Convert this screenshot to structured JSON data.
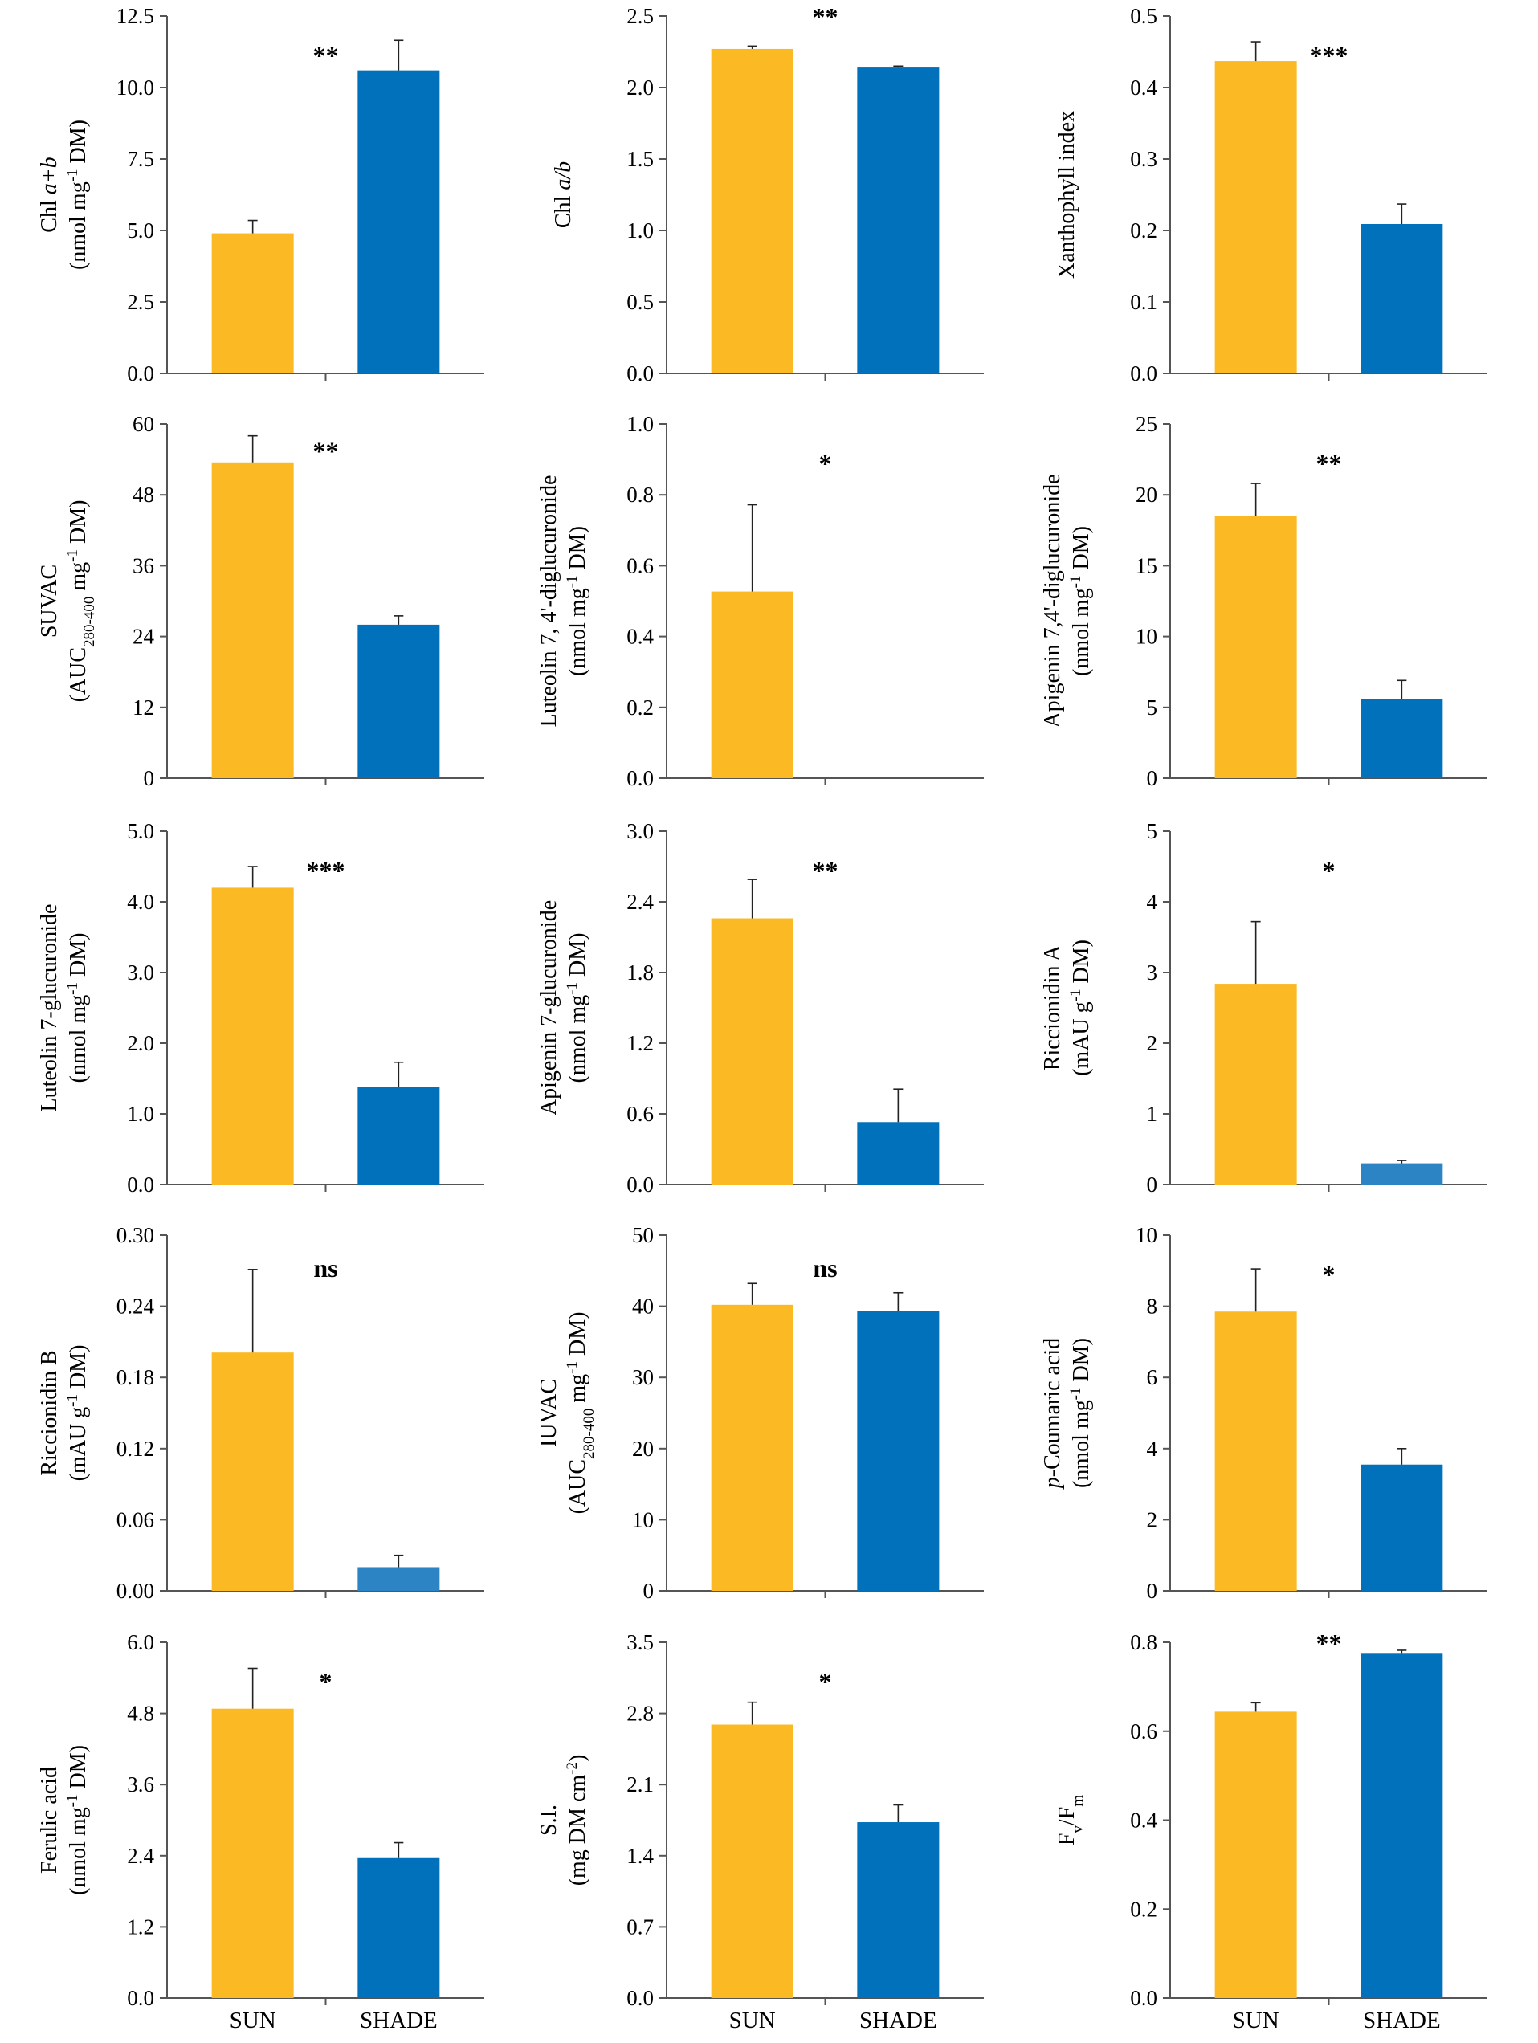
{
  "colors": {
    "sun": "#FBB924",
    "shade": "#0171BB",
    "shade_light": "#2D84C4",
    "axis": "#555555",
    "text": "#000000"
  },
  "x_categories": [
    "SUN",
    "SHADE"
  ],
  "chart_data": [
    {
      "type": "bar",
      "categories": [
        "SUN",
        "SHADE"
      ],
      "ylabel_lines": [
        [
          {
            "t": "Chl "
          },
          {
            "t": "a+b",
            "i": true
          }
        ],
        [
          {
            "t": "(nmol mg"
          },
          {
            "t": "-1",
            "sup": true
          },
          {
            "t": " DM)"
          }
        ]
      ],
      "yticks": [
        "0.0",
        "2.5",
        "5.0",
        "7.5",
        "10.0",
        "12.5"
      ],
      "ylim": [
        0,
        12.5
      ],
      "values": [
        4.9,
        10.6
      ],
      "errors": [
        0.45,
        1.05
      ],
      "significance": "**",
      "sig_pos": "mid"
    },
    {
      "type": "bar",
      "categories": [
        "SUN",
        "SHADE"
      ],
      "ylabel_lines": [
        [
          {
            "t": "Chl "
          },
          {
            "t": "a/b",
            "i": true
          }
        ]
      ],
      "yticks": [
        "0.0",
        "0.5",
        "1.0",
        "1.5",
        "2.0",
        "2.5"
      ],
      "ylim": [
        0,
        2.5
      ],
      "values": [
        2.27,
        2.14
      ],
      "errors": [
        0.02,
        0.01
      ],
      "significance": "**",
      "sig_pos": "mid"
    },
    {
      "type": "bar",
      "categories": [
        "SUN",
        "SHADE"
      ],
      "ylabel_lines": [
        [
          {
            "t": "Xanthophyll index"
          }
        ]
      ],
      "yticks": [
        "0.0",
        "0.1",
        "0.2",
        "0.3",
        "0.4",
        "0.5"
      ],
      "ylim": [
        0,
        0.5
      ],
      "values": [
        0.437,
        0.209
      ],
      "errors": [
        0.027,
        0.028
      ],
      "significance": "***",
      "sig_pos": "mid"
    },
    {
      "type": "bar",
      "categories": [
        "SUN",
        "SHADE"
      ],
      "ylabel_lines": [
        [
          {
            "t": "SUVAC"
          }
        ],
        [
          {
            "t": "(AUC"
          },
          {
            "t": "280-400",
            "sub": true
          },
          {
            "t": " mg"
          },
          {
            "t": "-1",
            "sup": true
          },
          {
            "t": " DM)"
          }
        ]
      ],
      "yticks": [
        "0",
        "12",
        "24",
        "36",
        "48",
        "60"
      ],
      "ylim": [
        0,
        60
      ],
      "values": [
        53.5,
        26
      ],
      "errors": [
        4.5,
        1.5
      ],
      "significance": "**",
      "sig_pos": "mid"
    },
    {
      "type": "bar",
      "categories": [
        "SUN",
        "SHADE"
      ],
      "ylabel_lines": [
        [
          {
            "t": "Luteolin 7, 4'-diglucuronide"
          }
        ],
        [
          {
            "t": "(nmol mg"
          },
          {
            "t": "-1",
            "sup": true
          },
          {
            "t": " DM)"
          }
        ]
      ],
      "yticks": [
        "0.0",
        "0.2",
        "0.4",
        "0.6",
        "0.8",
        "1.0"
      ],
      "ylim": [
        0,
        1.0
      ],
      "values": [
        0.527,
        0
      ],
      "errors": [
        0.245,
        0
      ],
      "significance": "*",
      "sig_pos": "mid"
    },
    {
      "type": "bar",
      "categories": [
        "SUN",
        "SHADE"
      ],
      "ylabel_lines": [
        [
          {
            "t": "Apigenin 7,4'-diglucuronide"
          }
        ],
        [
          {
            "t": "(nmol mg"
          },
          {
            "t": "-1",
            "sup": true
          },
          {
            "t": " DM)"
          }
        ]
      ],
      "yticks": [
        "0",
        "5",
        "10",
        "15",
        "20",
        "25"
      ],
      "ylim": [
        0,
        25
      ],
      "values": [
        18.5,
        5.6
      ],
      "errors": [
        2.3,
        1.3
      ],
      "significance": "**",
      "sig_pos": "mid"
    },
    {
      "type": "bar",
      "categories": [
        "SUN",
        "SHADE"
      ],
      "ylabel_lines": [
        [
          {
            "t": "Luteolin 7-glucuronide"
          }
        ],
        [
          {
            "t": "(nmol mg"
          },
          {
            "t": "-1",
            "sup": true
          },
          {
            "t": " DM)"
          }
        ]
      ],
      "yticks": [
        "0.0",
        "1.0",
        "2.0",
        "3.0",
        "4.0",
        "5.0"
      ],
      "ylim": [
        0,
        5.0
      ],
      "values": [
        4.2,
        1.38
      ],
      "errors": [
        0.3,
        0.35
      ],
      "significance": "***",
      "sig_pos": "mid"
    },
    {
      "type": "bar",
      "categories": [
        "SUN",
        "SHADE"
      ],
      "ylabel_lines": [
        [
          {
            "t": "Apigenin 7-glucuronide"
          }
        ],
        [
          {
            "t": "(nmol mg"
          },
          {
            "t": "-1",
            "sup": true
          },
          {
            "t": " DM)"
          }
        ]
      ],
      "yticks": [
        "0.0",
        "0.6",
        "1.2",
        "1.8",
        "2.4",
        "3.0"
      ],
      "ylim": [
        0,
        3.0
      ],
      "values": [
        2.26,
        0.53
      ],
      "errors": [
        0.33,
        0.28
      ],
      "significance": "**",
      "sig_pos": "mid"
    },
    {
      "type": "bar",
      "categories": [
        "SUN",
        "SHADE"
      ],
      "ylabel_lines": [
        [
          {
            "t": "Riccionidin A"
          }
        ],
        [
          {
            "t": "(mAU g"
          },
          {
            "t": "-1",
            "sup": true
          },
          {
            "t": " DM)"
          }
        ]
      ],
      "yticks": [
        "0",
        "1",
        "2",
        "3",
        "4",
        "5"
      ],
      "ylim": [
        0,
        5
      ],
      "values": [
        2.84,
        0.3
      ],
      "errors": [
        0.88,
        0.04
      ],
      "significance": "*",
      "sig_pos": "mid",
      "shade_light": true
    },
    {
      "type": "bar",
      "categories": [
        "SUN",
        "SHADE"
      ],
      "ylabel_lines": [
        [
          {
            "t": "Riccionidin B"
          }
        ],
        [
          {
            "t": "(mAU g"
          },
          {
            "t": "-1",
            "sup": true
          },
          {
            "t": " DM)"
          }
        ]
      ],
      "yticks": [
        "0.00",
        "0.06",
        "0.12",
        "0.18",
        "0.24",
        "0.30"
      ],
      "ylim": [
        0,
        0.3
      ],
      "values": [
        0.201,
        0.02
      ],
      "errors": [
        0.07,
        0.01
      ],
      "significance": "ns",
      "sig_pos": "mid",
      "shade_light": true
    },
    {
      "type": "bar",
      "categories": [
        "SUN",
        "SHADE"
      ],
      "ylabel_lines": [
        [
          {
            "t": "IUVAC"
          }
        ],
        [
          {
            "t": "(AUC"
          },
          {
            "t": "280-400",
            "sub": true
          },
          {
            "t": " mg"
          },
          {
            "t": "-1",
            "sup": true
          },
          {
            "t": " DM)"
          }
        ]
      ],
      "yticks": [
        "0",
        "10",
        "20",
        "30",
        "40",
        "50"
      ],
      "ylim": [
        0,
        50
      ],
      "values": [
        40.2,
        39.3
      ],
      "errors": [
        3,
        2.6
      ],
      "significance": "ns",
      "sig_pos": "mid"
    },
    {
      "type": "bar",
      "categories": [
        "SUN",
        "SHADE"
      ],
      "ylabel_lines": [
        [
          {
            "t": "p",
            "i": true
          },
          {
            "t": "-Coumaric acid"
          }
        ],
        [
          {
            "t": "(nmol mg"
          },
          {
            "t": "-1",
            "sup": true
          },
          {
            "t": " DM)"
          }
        ]
      ],
      "yticks": [
        "0",
        "2",
        "4",
        "6",
        "8",
        "10"
      ],
      "ylim": [
        0,
        10
      ],
      "values": [
        7.85,
        3.55
      ],
      "errors": [
        1.2,
        0.45
      ],
      "significance": "*",
      "sig_pos": "mid"
    },
    {
      "type": "bar",
      "categories": [
        "SUN",
        "SHADE"
      ],
      "ylabel_lines": [
        [
          {
            "t": "Ferulic acid"
          }
        ],
        [
          {
            "t": "(nmol mg"
          },
          {
            "t": "-1",
            "sup": true
          },
          {
            "t": " DM)"
          }
        ]
      ],
      "yticks": [
        "0.0",
        "1.2",
        "2.4",
        "3.6",
        "4.8",
        "6.0"
      ],
      "ylim": [
        0,
        6.0
      ],
      "values": [
        4.88,
        2.36
      ],
      "errors": [
        0.68,
        0.26
      ],
      "significance": "*",
      "sig_pos": "mid"
    },
    {
      "type": "bar",
      "categories": [
        "SUN",
        "SHADE"
      ],
      "ylabel_lines": [
        [
          {
            "t": "S.I."
          }
        ],
        [
          {
            "t": "(mg DM cm"
          },
          {
            "t": "-2",
            "sup": true
          },
          {
            "t": ")"
          }
        ]
      ],
      "yticks": [
        "0.0",
        "0.7",
        "1.4",
        "2.1",
        "2.8",
        "3.5"
      ],
      "ylim": [
        0,
        3.5
      ],
      "values": [
        2.69,
        1.73
      ],
      "errors": [
        0.22,
        0.17
      ],
      "significance": "*",
      "sig_pos": "mid"
    },
    {
      "type": "bar",
      "categories": [
        "SUN",
        "SHADE"
      ],
      "ylabel_lines": [
        [
          {
            "t": "F"
          },
          {
            "t": "v",
            "sub": true
          },
          {
            "t": "/F"
          },
          {
            "t": "m",
            "sub": true
          }
        ]
      ],
      "yticks": [
        "0.0",
        "0.2",
        "0.4",
        "0.6",
        "0.8"
      ],
      "ylim": [
        0,
        0.8
      ],
      "values": [
        0.644,
        0.776
      ],
      "errors": [
        0.02,
        0.006
      ],
      "significance": "**",
      "sig_pos": "mid"
    }
  ]
}
